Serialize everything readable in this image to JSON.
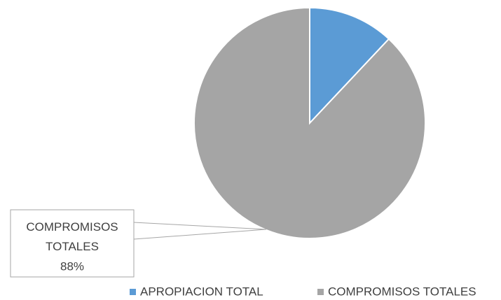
{
  "chart_data": {
    "type": "pie",
    "categories": [
      "APROPIACION TOTAL",
      "COMPROMISOS TOTALES"
    ],
    "values": [
      12,
      88
    ],
    "value_labels": [
      null,
      "88%"
    ],
    "colors": [
      "#5b9bd5",
      "#a5a5a5"
    ],
    "legend": "bottom"
  }
}
